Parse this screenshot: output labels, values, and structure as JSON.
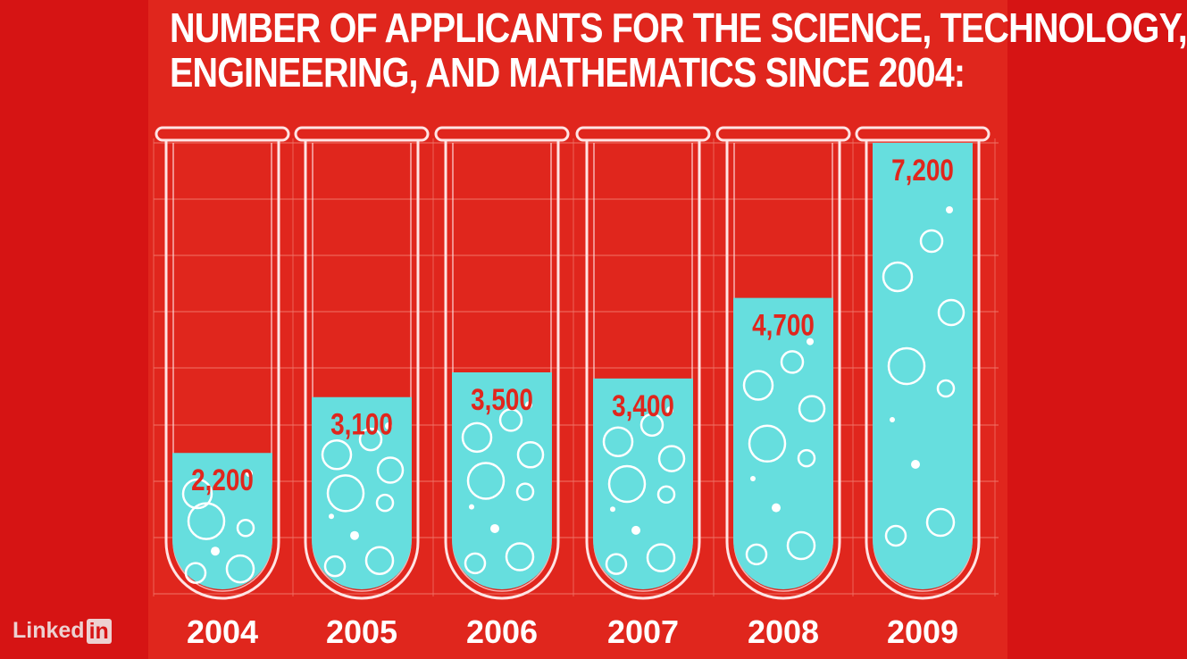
{
  "title_lines": [
    "NUMBER OF APPLICANTS FOR THE SCIENCE, TECHNOLOGY,",
    "ENGINEERING, AND MATHEMATICS SINCE 2004:"
  ],
  "watermark": {
    "text": "Linked",
    "box_text": "in"
  },
  "colors": {
    "background": "#d61414",
    "panel": "#e0261d",
    "liquid": "#66dede",
    "tube_outline": "#ffe4e4",
    "value_label": "#e0261d",
    "year_label": "#ffffff"
  },
  "chart_data": {
    "type": "bar",
    "title": "NUMBER OF APPLICANTS FOR THE SCIENCE, TECHNOLOGY, ENGINEERING, AND MATHEMATICS SINCE 2004:",
    "categories": [
      "2004",
      "2005",
      "2006",
      "2007",
      "2008",
      "2009"
    ],
    "values": [
      2200,
      3100,
      3500,
      3400,
      4700,
      7200
    ],
    "value_labels": [
      "2,200",
      "3,100",
      "3,500",
      "3,400",
      "4,700",
      "7,200"
    ],
    "xlabel": "",
    "ylabel": "",
    "ylim": [
      0,
      7200
    ],
    "grid": true,
    "legend": "none"
  }
}
